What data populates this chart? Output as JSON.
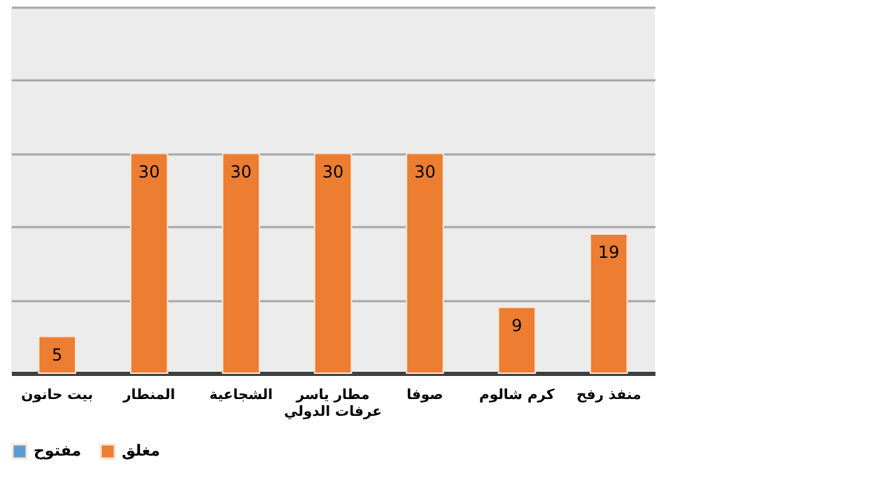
{
  "chart_data": {
    "type": "bar",
    "categories": [
      "بيت حانون",
      "المنطار",
      "الشجاعية",
      "مطار ياسر عرفات الدولي",
      "صوفا",
      "كرم شالوم",
      "منفذ رفح"
    ],
    "series": [
      {
        "name": "مفتوح",
        "color": "#5b9bd5",
        "values": [
          null,
          null,
          null,
          null,
          null,
          null,
          null
        ]
      },
      {
        "name": "مغلق",
        "color": "#ed7d31",
        "values": [
          5,
          30,
          30,
          30,
          30,
          9,
          19
        ]
      }
    ],
    "ylim": [
      0,
      50
    ],
    "yticks": [
      {
        "value": 0,
        "label": null
      },
      {
        "value": 10,
        "label": null
      },
      {
        "value": 20,
        "label": null
      },
      {
        "value": 30,
        "label": null
      },
      {
        "value": 40,
        "label": null
      },
      {
        "value": 50,
        "label": null
      }
    ],
    "tick_labels": "x",
    "grid": "y",
    "data_labels": true,
    "legend": "bottom"
  }
}
